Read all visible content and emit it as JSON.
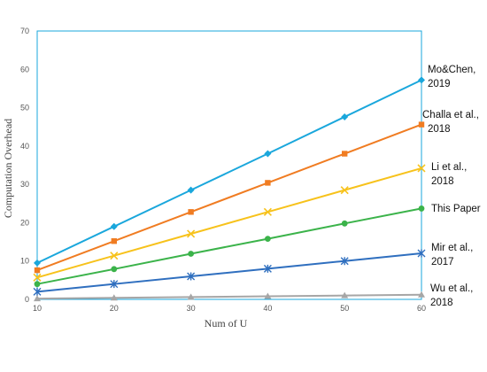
{
  "chart_data": {
    "type": "line",
    "title": "",
    "xlabel": "Num of U",
    "ylabel": "Computation Overhead",
    "x": [
      10,
      20,
      30,
      40,
      50,
      60
    ],
    "xlim": [
      10,
      60
    ],
    "ylim": [
      0,
      70
    ],
    "x_ticks": [
      "10",
      "20",
      "30",
      "40",
      "50",
      "60"
    ],
    "y_ticks": [
      "0",
      "10",
      "20",
      "30",
      "40",
      "50",
      "60",
      "70"
    ],
    "grid": false,
    "legend": "right-of-lines",
    "series": [
      {
        "name": "Mo&Chen, 2019",
        "label_lines": [
          "Mo&Chen,",
          "2019"
        ],
        "values": [
          9.5,
          19,
          28.5,
          38,
          47.6,
          57.2
        ],
        "color": "#1aa7dc",
        "marker": "diamond"
      },
      {
        "name": "Challa et al., 2018",
        "label_lines": [
          "Challa et al.,",
          "2018"
        ],
        "values": [
          7.6,
          15.2,
          22.8,
          30.4,
          38,
          45.6
        ],
        "color": "#f07c22",
        "marker": "square"
      },
      {
        "name": "Li et al., 2018",
        "label_lines": [
          "Li et al.,",
          "2018"
        ],
        "values": [
          5.7,
          11.4,
          17.1,
          22.8,
          28.5,
          34.2
        ],
        "color": "#f7c21b",
        "marker": "x"
      },
      {
        "name": "This Paper",
        "label_lines": [
          "This Paper"
        ],
        "values": [
          4,
          7.9,
          11.9,
          15.8,
          19.8,
          23.7
        ],
        "color": "#3bb34a",
        "marker": "circle"
      },
      {
        "name": "Mir et al., 2017",
        "label_lines": [
          "Mir et al.,",
          "2017"
        ],
        "values": [
          2,
          4,
          6,
          8,
          10,
          12
        ],
        "color": "#2f6fbf",
        "marker": "star"
      },
      {
        "name": "Wu et al., 2018",
        "label_lines": [
          "Wu et al.,",
          "2018"
        ],
        "values": [
          0.2,
          0.4,
          0.6,
          0.8,
          1.0,
          1.2
        ],
        "color": "#a6a6a6",
        "marker": "triangle"
      }
    ]
  }
}
